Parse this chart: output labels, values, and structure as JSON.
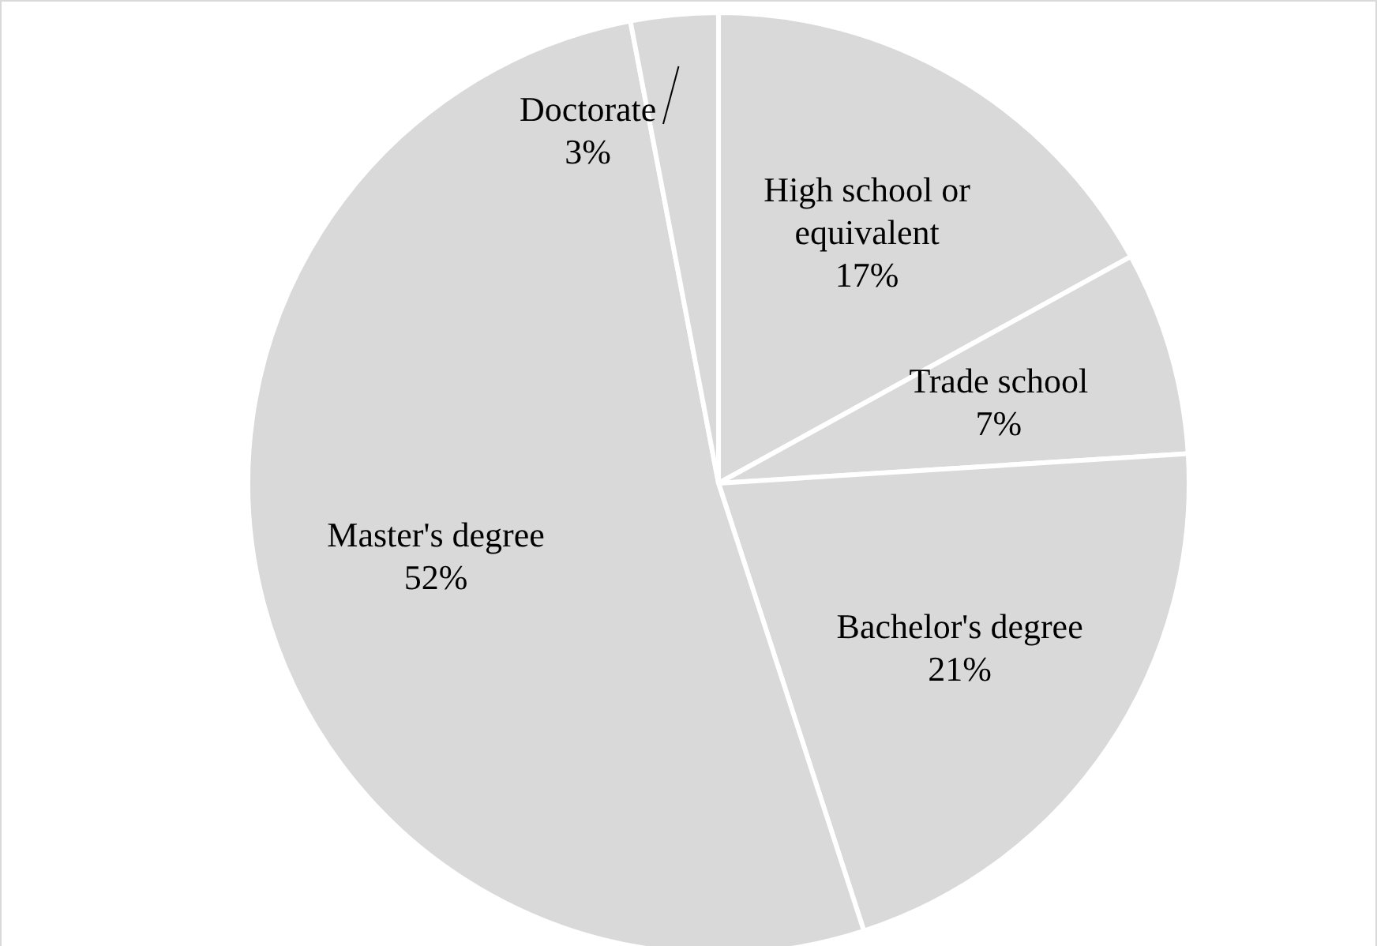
{
  "chart_data": {
    "type": "pie",
    "categories": [
      "High school or equivalent",
      "Trade school",
      "Bachelor's degree",
      "Master's degree",
      "Doctorate"
    ],
    "values": [
      17,
      7,
      21,
      52,
      3
    ],
    "value_labels": [
      "17%",
      "7%",
      "21%",
      "52%",
      "3%"
    ],
    "colors": [
      "#d9d9d9",
      "#d9d9d9",
      "#d9d9d9",
      "#d9d9d9",
      "#d9d9d9"
    ],
    "legend": false
  }
}
